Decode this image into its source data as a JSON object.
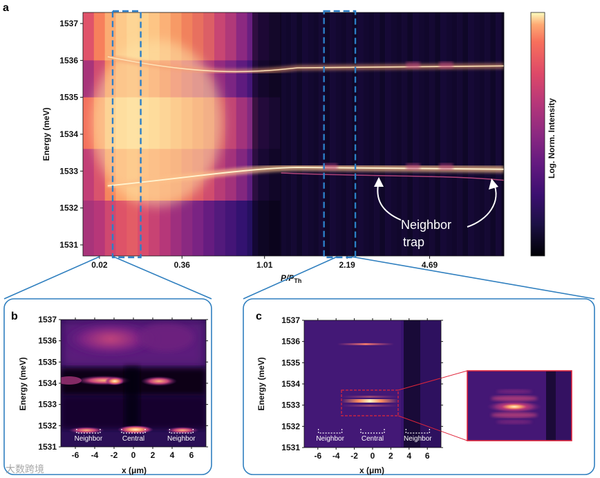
{
  "chart_data": [
    {
      "panel": "a",
      "type": "heatmap",
      "xlabel_main": "P/P",
      "xlabel_sub": "Th",
      "ylabel": "Energy (meV)",
      "colorbar_label": "Log. Norm. Intensity",
      "ylim": [
        1530.7,
        1537.3
      ],
      "yticks": [
        1531,
        1532,
        1533,
        1534,
        1535,
        1536,
        1537
      ],
      "xtick_labels": [
        "0.02",
        "0.36",
        "1.01",
        "2.19",
        "4.69"
      ],
      "xtick_positions": [
        0,
        0.5,
        1,
        1.5,
        2
      ],
      "x_range": [
        -0.1,
        2.45
      ],
      "annotation": [
        "Neighbor",
        "trap"
      ],
      "upper_mode_energy": [
        1536.1,
        1535.6,
        1535.85,
        1535.85
      ],
      "lower_mode_energy": [
        1532.6,
        1532.8,
        1533.1,
        1533.05
      ],
      "selections_x": [
        [
          0.08,
          0.25
        ],
        [
          1.36,
          1.55
        ]
      ]
    },
    {
      "panel": "b",
      "type": "heatmap",
      "xlabel": "x (μm)",
      "ylabel": "Energy (meV)",
      "xlim": [
        -7.5,
        7.5
      ],
      "ylim": [
        1531,
        1537
      ],
      "xticks": [
        -6,
        -4,
        -2,
        0,
        2,
        4,
        6
      ],
      "yticks": [
        1531,
        1532,
        1533,
        1534,
        1535,
        1536,
        1537
      ],
      "region_labels": [
        "Neighbor",
        "Central",
        "Neighbor"
      ]
    },
    {
      "panel": "c",
      "type": "heatmap",
      "xlabel": "x (μm)",
      "ylabel": "Energy (meV)",
      "xlim": [
        -7.5,
        7.5
      ],
      "ylim": [
        1531,
        1537
      ],
      "xticks": [
        -6,
        -4,
        -2,
        0,
        2,
        4,
        6
      ],
      "yticks": [
        1531,
        1532,
        1533,
        1534,
        1535,
        1536,
        1537
      ],
      "region_labels": [
        "Neighbor",
        "Central",
        "Neighbor"
      ],
      "inset_region_x": [
        -3.5,
        3.5
      ],
      "inset_region_y": [
        1532.4,
        1533.7
      ]
    }
  ],
  "panel_labels": {
    "a": "a",
    "b": "b",
    "c": "c"
  },
  "watermark": "大数跨境",
  "colors": {
    "frame": "#2f7fbf",
    "selection": "#2c7fc7",
    "inset": "#e0253a",
    "arrow": "#ffffff"
  }
}
